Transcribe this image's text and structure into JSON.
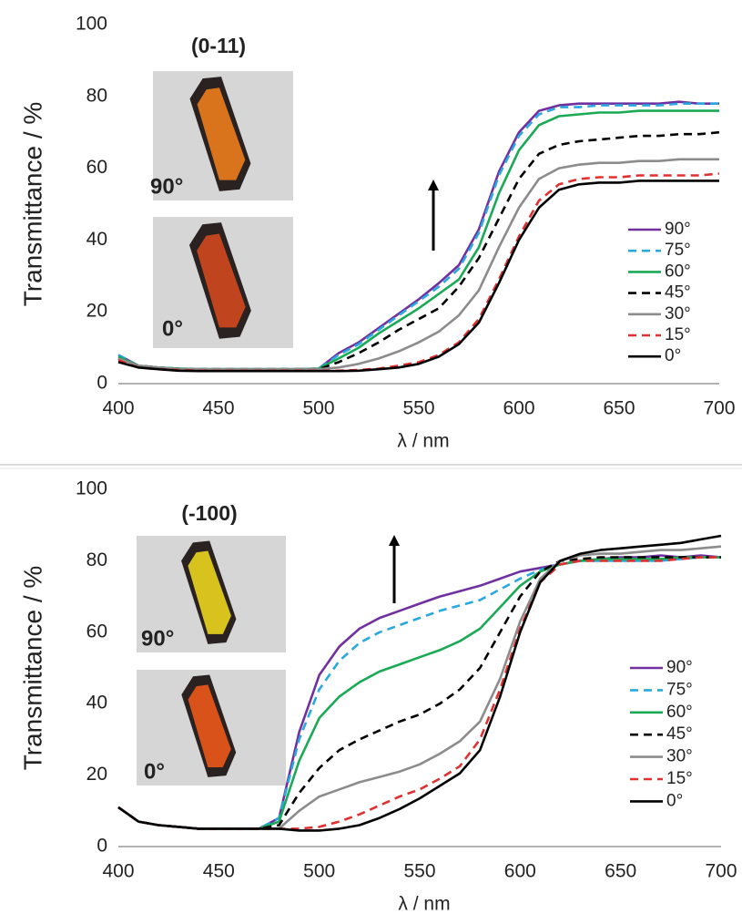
{
  "chart_data": [
    {
      "type": "line",
      "annotation": "(0-11)",
      "ylabel": "Transmittance / %",
      "xlabel": "λ / nm",
      "xlim": [
        400,
        700
      ],
      "xticks": [
        400,
        450,
        500,
        550,
        600,
        650,
        700
      ],
      "ylim": [
        0,
        100
      ],
      "yticks": [
        0,
        20,
        40,
        60,
        80,
        100
      ],
      "grid": false,
      "legend": "right",
      "insets": [
        {
          "label": "90°"
        },
        {
          "label": "0°"
        }
      ],
      "x": [
        400,
        410,
        420,
        430,
        440,
        450,
        460,
        470,
        480,
        490,
        500,
        510,
        520,
        530,
        540,
        550,
        560,
        570,
        580,
        590,
        600,
        610,
        620,
        630,
        640,
        650,
        660,
        670,
        680,
        690,
        700
      ],
      "series": [
        {
          "name": "90°",
          "color": "#7030a0",
          "dash": false,
          "values": [
            8,
            5,
            4.5,
            4.2,
            4,
            4,
            4,
            4,
            4,
            4,
            4.2,
            8.5,
            11.5,
            15.5,
            19.5,
            23.5,
            28,
            33,
            43,
            59,
            70,
            76,
            77.5,
            78,
            78,
            78,
            78,
            78,
            78.5,
            78,
            78
          ]
        },
        {
          "name": "75°",
          "color": "#29a8e0",
          "dash": true,
          "values": [
            8,
            5,
            4.5,
            4.2,
            4,
            4,
            4,
            4,
            4,
            4,
            4.2,
            8,
            11,
            15,
            19,
            23,
            27,
            32,
            42,
            58,
            69,
            75,
            77,
            77,
            77.5,
            77.5,
            77.5,
            77.5,
            78,
            78,
            78
          ]
        },
        {
          "name": "60°",
          "color": "#1aaa55",
          "dash": false,
          "values": [
            7.5,
            5,
            4.5,
            4.2,
            4,
            4,
            4,
            4,
            4,
            4,
            4.2,
            7,
            10,
            14,
            17.5,
            21,
            25,
            29,
            38,
            53,
            65,
            72,
            74.5,
            75,
            75.5,
            75.5,
            76,
            76,
            76,
            76,
            76
          ]
        },
        {
          "name": "45°",
          "color": "#000000",
          "dash": true,
          "values": [
            7,
            5,
            4.5,
            4,
            4,
            4,
            4,
            4,
            4,
            4,
            4,
            6,
            8.5,
            11.5,
            15,
            18,
            21,
            27,
            35,
            46,
            57,
            64,
            66.5,
            67.5,
            68,
            68.5,
            69,
            69,
            69.5,
            69.5,
            70
          ]
        },
        {
          "name": "30°",
          "color": "#8c8c8c",
          "dash": false,
          "values": [
            7,
            5,
            4.5,
            4,
            4,
            4,
            4,
            4,
            4,
            4,
            4,
            4.5,
            5.5,
            7,
            9,
            11.5,
            14.5,
            19,
            26,
            38,
            49,
            57,
            60,
            61,
            61.5,
            61.5,
            62,
            62,
            62.5,
            62.5,
            62.5
          ]
        },
        {
          "name": "15°",
          "color": "#e03030",
          "dash": true,
          "values": [
            6.5,
            4.5,
            4,
            3.8,
            3.6,
            3.6,
            3.6,
            3.6,
            3.6,
            3.6,
            3.6,
            3.6,
            3.8,
            4.2,
            5,
            6,
            8,
            11.5,
            18,
            29,
            41,
            51,
            55.5,
            57,
            57.5,
            57.5,
            58,
            58,
            58,
            58,
            58.5
          ]
        },
        {
          "name": "0°",
          "color": "#000000",
          "dash": false,
          "values": [
            6,
            4.5,
            4,
            3.6,
            3.5,
            3.5,
            3.5,
            3.5,
            3.5,
            3.5,
            3.5,
            3.5,
            3.6,
            4,
            4.5,
            5.5,
            7.5,
            11,
            17,
            28,
            40,
            49,
            54,
            55.5,
            56,
            56,
            56.5,
            56.5,
            56.5,
            56.5,
            56.5
          ]
        }
      ]
    },
    {
      "type": "line",
      "annotation": "(-100)",
      "ylabel": "Transmittance / %",
      "xlabel": "λ / nm",
      "xlim": [
        400,
        700
      ],
      "xticks": [
        400,
        450,
        500,
        550,
        600,
        650,
        700
      ],
      "ylim": [
        0,
        100
      ],
      "yticks": [
        0,
        20,
        40,
        60,
        80,
        100
      ],
      "grid": false,
      "legend": "right",
      "insets": [
        {
          "label": "90°"
        },
        {
          "label": "0°"
        }
      ],
      "x": [
        400,
        410,
        420,
        430,
        440,
        450,
        460,
        470,
        480,
        490,
        500,
        510,
        520,
        530,
        540,
        550,
        560,
        570,
        580,
        590,
        600,
        610,
        620,
        630,
        640,
        650,
        660,
        670,
        680,
        690,
        700
      ],
      "series": [
        {
          "name": "90°",
          "color": "#7030a0",
          "dash": false,
          "values": [
            11,
            7,
            6,
            5.5,
            5,
            5,
            5,
            5,
            8,
            32,
            48,
            56,
            61,
            64,
            66,
            68,
            70,
            71.5,
            73,
            75,
            77,
            78,
            79,
            80,
            80.5,
            81,
            81,
            81.5,
            81,
            81.5,
            81
          ]
        },
        {
          "name": "75°",
          "color": "#29a8e0",
          "dash": true,
          "values": [
            11,
            7,
            6,
            5.5,
            5,
            5,
            5,
            5,
            8,
            30,
            44,
            52,
            57,
            60,
            62,
            64,
            66,
            67.5,
            69,
            72,
            75,
            77.5,
            79,
            80,
            80,
            80,
            80,
            80,
            80.5,
            81,
            81
          ]
        },
        {
          "name": "60°",
          "color": "#1aaa55",
          "dash": false,
          "values": [
            11,
            7,
            6,
            5.5,
            5,
            5,
            5,
            5,
            7,
            24,
            36,
            42,
            46,
            49,
            51,
            53,
            55,
            57.5,
            61,
            67,
            73,
            77,
            79,
            80,
            80.5,
            80.5,
            80.5,
            80.5,
            81,
            81,
            81
          ]
        },
        {
          "name": "45°",
          "color": "#000000",
          "dash": true,
          "values": [
            11,
            7,
            6,
            5.5,
            5,
            5,
            5,
            5,
            6,
            15,
            22,
            27,
            30,
            32.5,
            35,
            37,
            40,
            44,
            50,
            60,
            70,
            77,
            80,
            80.5,
            81,
            81,
            81,
            81,
            81,
            81,
            81
          ]
        },
        {
          "name": "30°",
          "color": "#8c8c8c",
          "dash": false,
          "values": [
            11,
            7,
            6,
            5.5,
            5,
            5,
            5,
            5,
            5,
            10,
            14,
            16,
            18,
            19.5,
            21,
            23,
            26,
            29.5,
            35,
            47,
            63,
            75,
            80,
            81.5,
            82,
            82,
            82.5,
            83,
            83,
            83.5,
            84
          ]
        },
        {
          "name": "15°",
          "color": "#e03030",
          "dash": true,
          "values": [
            11,
            7,
            6,
            5.5,
            5,
            5,
            5,
            5,
            5,
            5,
            5.5,
            7,
            9,
            11.5,
            14,
            16,
            19,
            22.5,
            30,
            44,
            61,
            74,
            79,
            80,
            80,
            80,
            80,
            80,
            80.5,
            81,
            81
          ]
        },
        {
          "name": "0°",
          "color": "#000000",
          "dash": false,
          "values": [
            11,
            7,
            6,
            5.5,
            5,
            5,
            5,
            5,
            5,
            4.5,
            4.5,
            5,
            6,
            8,
            10.5,
            13.5,
            17,
            20.5,
            27,
            42,
            60,
            74,
            80,
            82,
            83,
            83.5,
            84,
            84.5,
            85,
            86,
            87
          ]
        }
      ]
    }
  ]
}
